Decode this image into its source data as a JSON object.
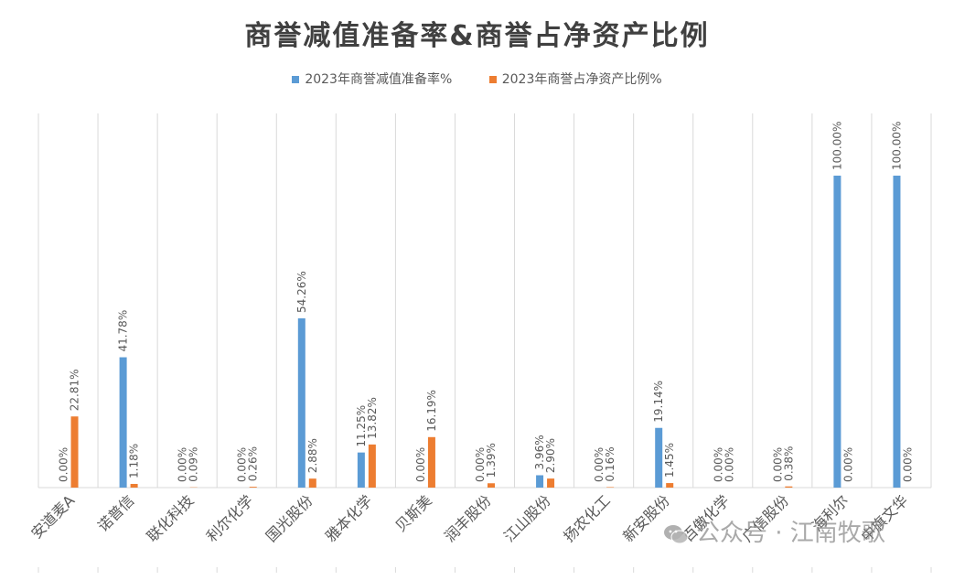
{
  "chart_data": {
    "type": "bar",
    "title": "商誉减值准备率&商誉占净资产比例",
    "categories": [
      "安道麦A",
      "诺普信",
      "联化科技",
      "利尔化学",
      "国光股份",
      "雅本化学",
      "贝斯美",
      "润丰股份",
      "江山股份",
      "扬农化工",
      "新安股份",
      "百傲化学",
      "广信股份",
      "海利尔",
      "中旗文华"
    ],
    "series": [
      {
        "name": "2023年商誉减值准备率%",
        "color": "#5B9BD5",
        "values": [
          0.0,
          41.78,
          0.0,
          0.0,
          54.26,
          11.25,
          0.0,
          0.0,
          3.96,
          0.0,
          19.14,
          0.0,
          0.0,
          100.0,
          100.0
        ],
        "labels": [
          "0.00%",
          "41.78%",
          "0.00%",
          "0.00%",
          "54.26%",
          "11.25%",
          "0.00%",
          "0.00%",
          "3.96%",
          "0.00%",
          "19.14%",
          "0.00%",
          "0.00%",
          "100.00%",
          "100.00%"
        ]
      },
      {
        "name": "2023年商誉占净资产比例%",
        "color": "#ED7D31",
        "values": [
          22.81,
          1.18,
          0.09,
          0.26,
          2.88,
          13.82,
          16.19,
          1.39,
          2.9,
          0.16,
          1.45,
          0.0,
          0.38,
          0.0,
          0.0
        ],
        "labels": [
          "22.81%",
          "1.18%",
          "0.09%",
          "0.26%",
          "2.88%",
          "13.82%",
          "16.19%",
          "1.39%",
          "2.90%",
          "0.16%",
          "1.45%",
          "0.00%",
          "0.38%",
          "0.00%",
          "0.00%"
        ]
      }
    ],
    "ylim": [
      0,
      100
    ],
    "grid": "vertical category separators",
    "legend": "top"
  },
  "watermark": {
    "text": "公众号 · 江南牧歌",
    "icon": "wechat-icon"
  }
}
